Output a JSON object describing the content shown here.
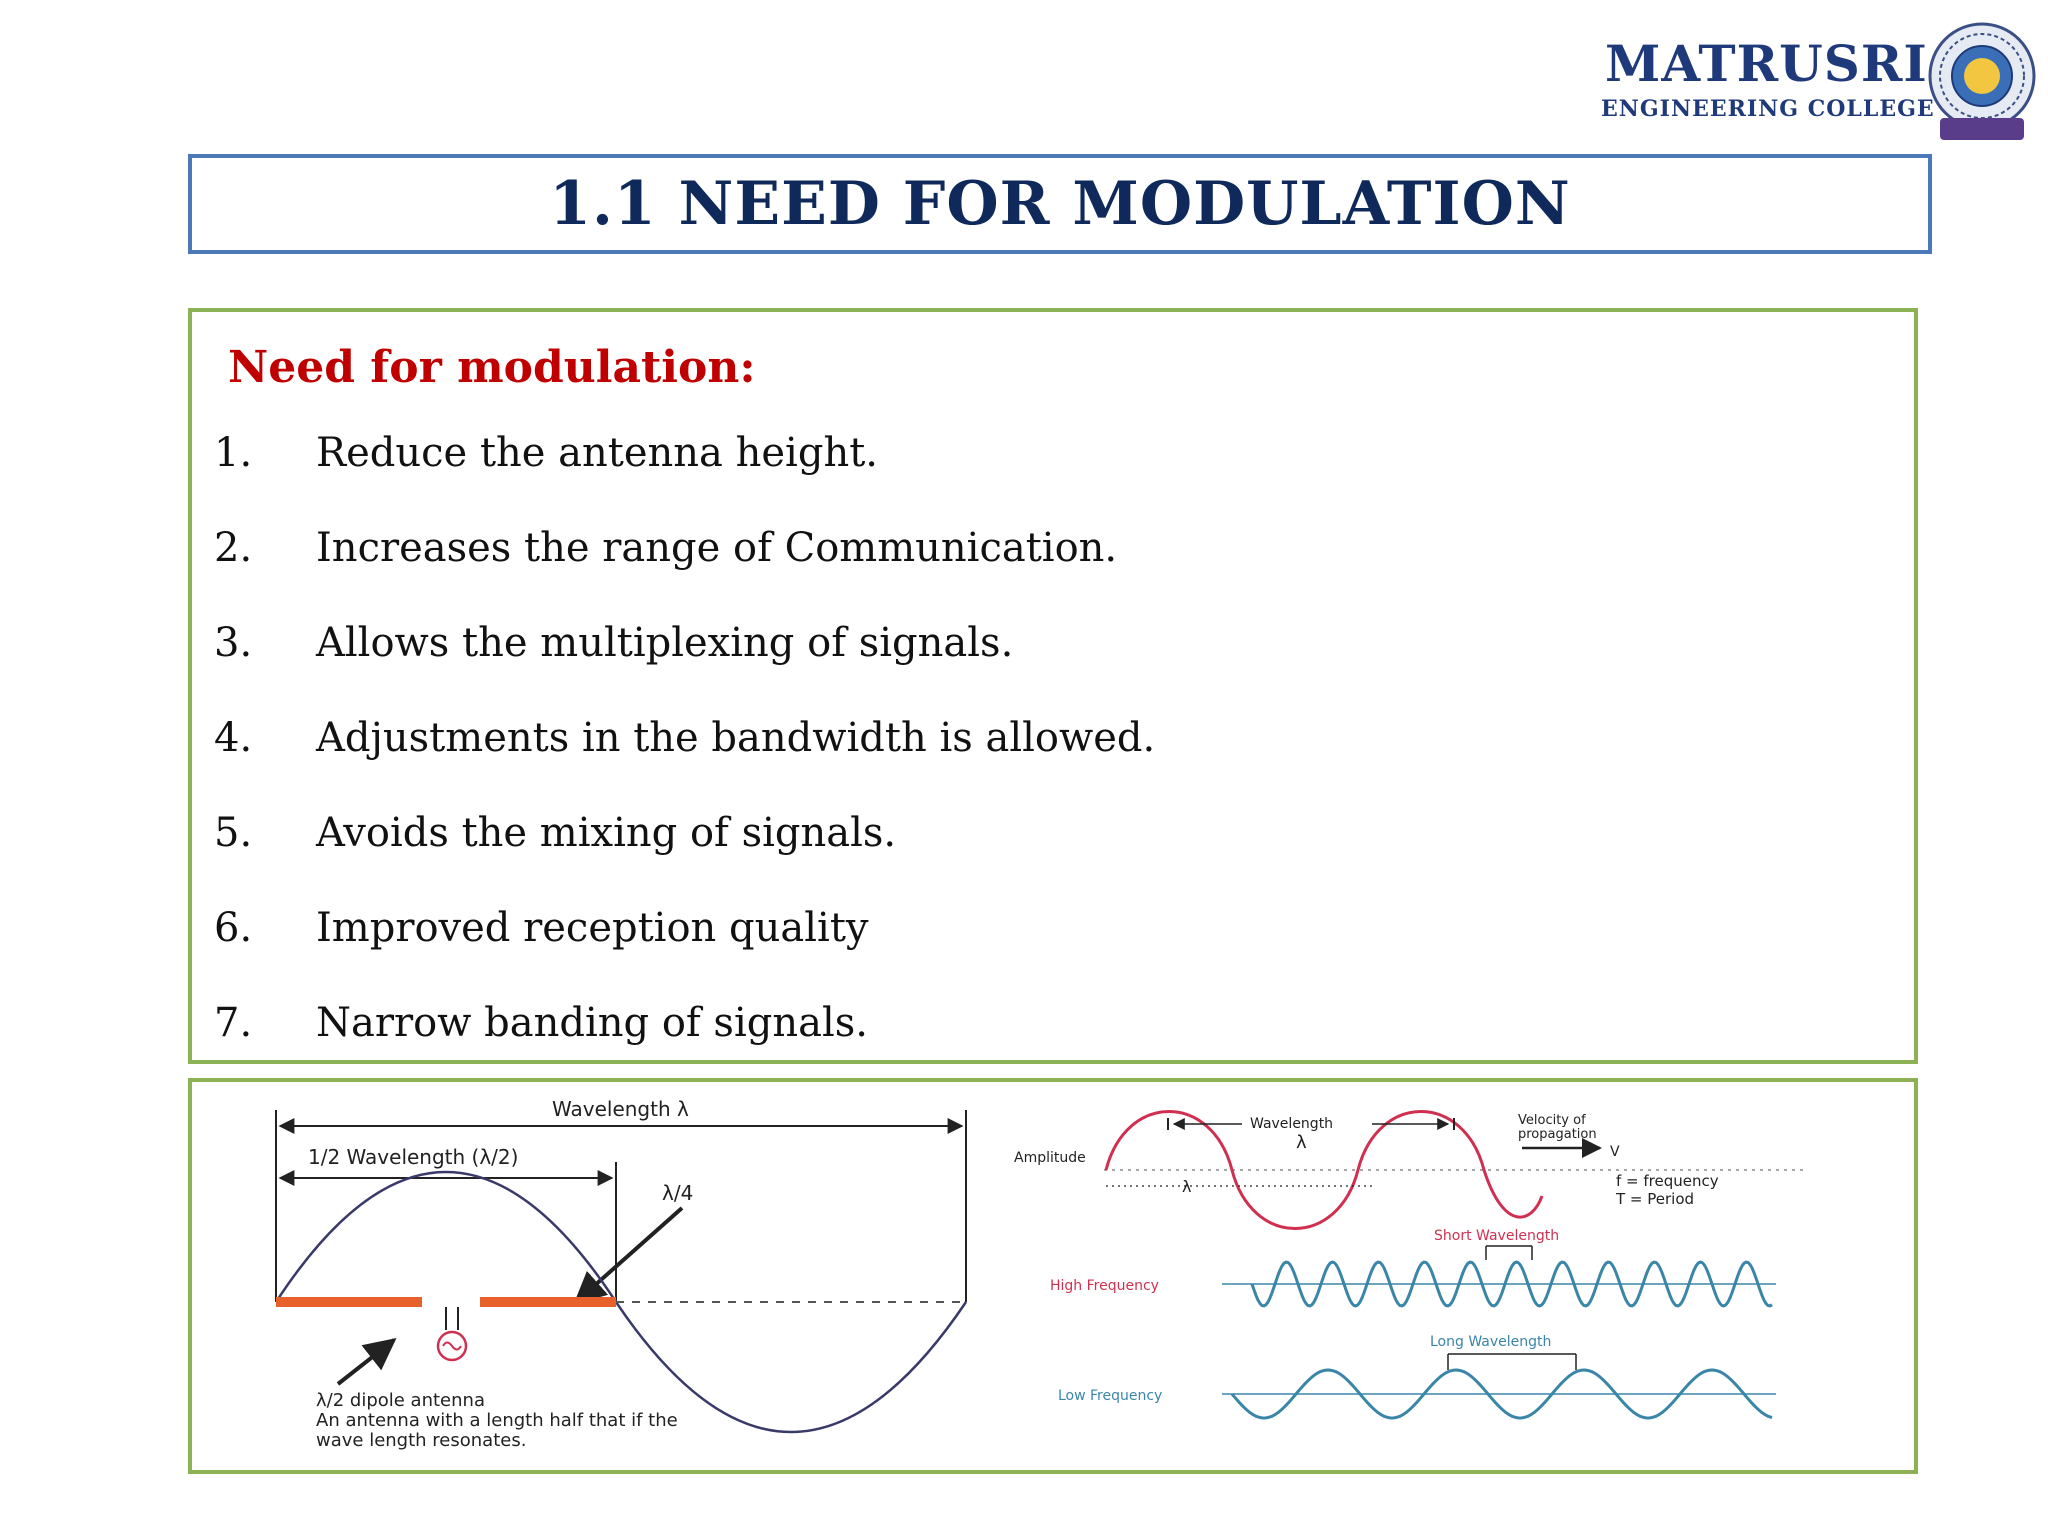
{
  "header": {
    "college_name": "MATRUSRI",
    "college_sub": "ENGINEERING COLLEGE"
  },
  "title": "1.1 NEED FOR MODULATION",
  "section_heading": "Need for modulation:",
  "items": [
    {
      "num": "1.",
      "text": "Reduce the antenna height."
    },
    {
      "num": "2.",
      "text": "Increases the range of Communication."
    },
    {
      "num": "3.",
      "text": "Allows the multiplexing of signals."
    },
    {
      "num": "4.",
      "text": "Adjustments in the bandwidth is allowed."
    },
    {
      "num": "5.",
      "text": "Avoids the mixing of signals."
    },
    {
      "num": "6.",
      "text": "Improved reception quality"
    },
    {
      "num": "7.",
      "text": "Narrow banding of signals."
    }
  ],
  "diagram_left": {
    "wavelength": "Wavelength λ",
    "half_wavelength": "1/2 Wavelength (λ/2)",
    "quarter": "λ/4",
    "caption_1": "λ/2 dipole antenna",
    "caption_2": "An antenna with a length half that if the",
    "caption_3": "wave length resonates."
  },
  "diagram_right": {
    "wavelength": "Wavelength",
    "lambda": "λ",
    "amplitude": "Amplitude",
    "velocity_1": "Velocity of",
    "velocity_2": "propagation",
    "v": "V",
    "f_def": "f = frequency",
    "t_def": "T = Period",
    "short_wavelength": "Short Wavelength",
    "high_frequency": "High Frequency",
    "long_wavelength": "Long Wavelength",
    "low_frequency": "Low Frequency"
  },
  "colors": {
    "title_border": "#4a78b8",
    "box_border": "#8db255",
    "heading_red": "#c00000",
    "navy": "#0f2a5a",
    "antenna_orange": "#e8602c",
    "wave_red": "#d03050",
    "wave_blue": "#3a86a8"
  }
}
